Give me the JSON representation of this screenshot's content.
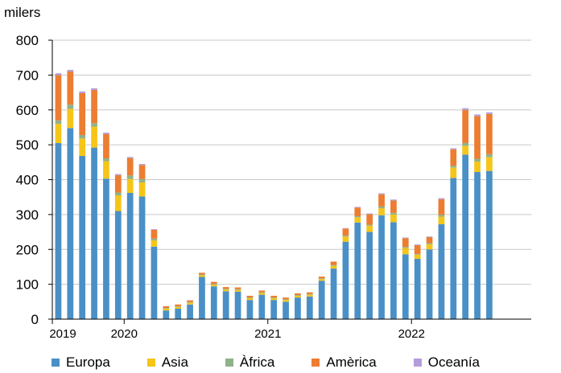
{
  "chart_data": {
    "type": "bar",
    "stacked": true,
    "ylabel": "milers",
    "ylim": [
      0,
      800
    ],
    "yticks": [
      0,
      100,
      200,
      300,
      400,
      500,
      600,
      700,
      800
    ],
    "grid": true,
    "legend_position": "bottom",
    "year_labels": [
      {
        "label": "2019",
        "month_index": 0
      },
      {
        "label": "2020",
        "month_index": 6
      },
      {
        "label": "2021",
        "month_index": 18
      },
      {
        "label": "2022",
        "month_index": 30
      }
    ],
    "months": [
      "2019-06",
      "2019-07",
      "2019-08",
      "2019-09",
      "2019-10",
      "2019-11",
      "2019-12",
      "2020-01",
      "2020-02",
      "2020-03",
      "2020-04",
      "2020-05",
      "2020-06",
      "2020-07",
      "2020-08",
      "2020-09",
      "2020-10",
      "2020-11",
      "2020-12",
      "2021-01",
      "2021-02",
      "2021-03",
      "2021-04",
      "2021-05",
      "2021-06",
      "2021-07",
      "2021-08",
      "2021-09",
      "2021-10",
      "2021-11",
      "2021-12",
      "2022-01",
      "2022-02",
      "2022-03",
      "2022-04",
      "2022-05",
      "2022-06",
      "2022-07",
      "2022-08",
      "2022-09"
    ],
    "series": [
      {
        "name": "Europa",
        "color": "#4a90c6",
        "values": [
          505,
          548,
          468,
          492,
          403,
          310,
          362,
          352,
          208,
          25,
          30,
          42,
          121,
          94,
          80,
          79,
          55,
          70,
          55,
          50,
          62,
          65,
          110,
          145,
          222,
          277,
          250,
          298,
          278,
          186,
          173,
          200,
          272,
          405,
          472,
          422,
          425,
          0,
          0,
          0
        ]
      },
      {
        "name": "Asia",
        "color": "#f5c518",
        "values": [
          55,
          55,
          50,
          60,
          50,
          45,
          40,
          40,
          18,
          5,
          5,
          5,
          5,
          5,
          5,
          5,
          5,
          5,
          5,
          5,
          5,
          5,
          5,
          8,
          15,
          15,
          18,
          20,
          22,
          18,
          12,
          15,
          22,
          30,
          25,
          30,
          40,
          0,
          0,
          0
        ]
      },
      {
        "name": "Àfrica",
        "color": "#8fb28a",
        "values": [
          10,
          12,
          10,
          10,
          8,
          8,
          10,
          10,
          5,
          2,
          2,
          2,
          2,
          2,
          2,
          2,
          2,
          2,
          2,
          2,
          2,
          2,
          2,
          2,
          3,
          3,
          3,
          5,
          5,
          3,
          2,
          3,
          5,
          5,
          8,
          8,
          8,
          0,
          0,
          0
        ]
      },
      {
        "name": "Amèrica",
        "color": "#ed7d31",
        "values": [
          130,
          95,
          120,
          95,
          70,
          50,
          50,
          40,
          25,
          5,
          5,
          5,
          5,
          6,
          5,
          5,
          5,
          5,
          5,
          5,
          5,
          5,
          5,
          10,
          20,
          25,
          30,
          35,
          35,
          25,
          25,
          17,
          45,
          47,
          95,
          122,
          115,
          0,
          0,
          0
        ]
      },
      {
        "name": "Oceania",
        "color": "#b39ddb",
        "values": [
          5,
          5,
          5,
          5,
          4,
          3,
          3,
          3,
          2,
          0,
          0,
          0,
          0,
          0,
          0,
          0,
          0,
          0,
          0,
          0,
          0,
          0,
          0,
          0,
          1,
          2,
          2,
          3,
          3,
          2,
          2,
          2,
          3,
          3,
          5,
          5,
          5,
          0,
          0,
          0
        ]
      }
    ]
  },
  "legend": [
    {
      "label": "Europa",
      "color": "#4a90c6"
    },
    {
      "label": "Asia",
      "color": "#f5c518"
    },
    {
      "label": "Àfrica",
      "color": "#8fb28a"
    },
    {
      "label": "Amèrica",
      "color": "#ed7d31"
    },
    {
      "label": "Oceanía",
      "color": "#b39ddb"
    }
  ]
}
